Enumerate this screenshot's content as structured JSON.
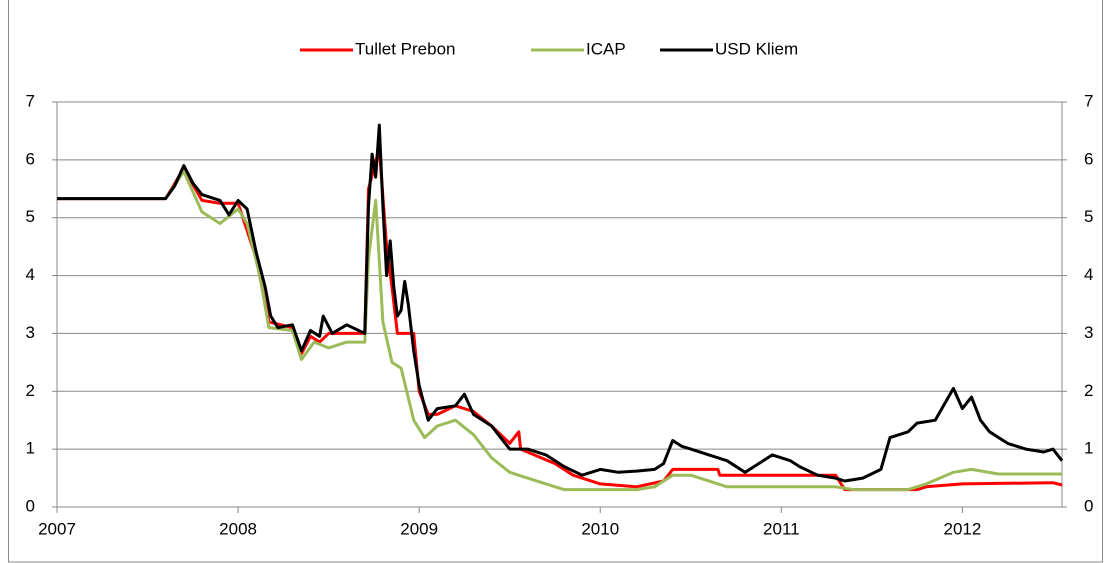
{
  "chart_data": {
    "type": "line",
    "xlim": [
      2007,
      2012.55
    ],
    "xticks": [
      2007,
      2008,
      2009,
      2010,
      2011,
      2012
    ],
    "ylim": [
      0,
      7
    ],
    "yticks": [
      0,
      1,
      2,
      3,
      4,
      5,
      6,
      7
    ],
    "y2lim": [
      0,
      7
    ],
    "y2ticks": [
      0,
      1,
      2,
      3,
      4,
      5,
      6,
      7
    ],
    "grid": true,
    "legend": "top",
    "series": [
      {
        "name": "Tullet Prebon",
        "color": "#ff0000",
        "x": [
          2007.0,
          2007.6,
          2007.7,
          2007.8,
          2007.9,
          2008.0,
          2008.1,
          2008.17,
          2008.3,
          2008.35,
          2008.4,
          2008.45,
          2008.5,
          2008.7,
          2008.72,
          2008.78,
          2008.82,
          2008.85,
          2008.88,
          2008.97,
          2009.0,
          2009.05,
          2009.1,
          2009.2,
          2009.3,
          2009.4,
          2009.5,
          2009.55,
          2009.56,
          2009.75,
          2009.85,
          2010.0,
          2010.2,
          2010.35,
          2010.4,
          2010.65,
          2010.66,
          2011.3,
          2011.35,
          2011.75,
          2011.8,
          2012.0,
          2012.5,
          2012.55
        ],
        "values": [
          5.33,
          5.33,
          5.85,
          5.3,
          5.25,
          5.25,
          4.3,
          3.2,
          3.1,
          2.65,
          2.95,
          2.85,
          3.0,
          3.0,
          5.5,
          6.2,
          4.5,
          3.8,
          3.0,
          3.0,
          2.0,
          1.6,
          1.6,
          1.75,
          1.65,
          1.4,
          1.1,
          1.3,
          1.0,
          0.75,
          0.55,
          0.4,
          0.35,
          0.45,
          0.65,
          0.65,
          0.55,
          0.55,
          0.3,
          0.3,
          0.35,
          0.4,
          0.42,
          0.38
        ]
      },
      {
        "name": "ICAP",
        "color": "#9bbb59",
        "x": [
          2007.0,
          2007.6,
          2007.7,
          2007.8,
          2007.9,
          2008.0,
          2008.05,
          2008.12,
          2008.17,
          2008.3,
          2008.35,
          2008.42,
          2008.5,
          2008.6,
          2008.7,
          2008.72,
          2008.76,
          2008.8,
          2008.85,
          2008.9,
          2008.97,
          2009.03,
          2009.1,
          2009.2,
          2009.3,
          2009.4,
          2009.5,
          2009.7,
          2009.8,
          2010.2,
          2010.3,
          2010.4,
          2010.5,
          2010.7,
          2011.0,
          2011.3,
          2011.4,
          2011.7,
          2011.8,
          2011.95,
          2012.05,
          2012.2,
          2012.55
        ],
        "values": [
          5.33,
          5.33,
          5.8,
          5.1,
          4.9,
          5.15,
          4.9,
          4.0,
          3.1,
          3.05,
          2.55,
          2.85,
          2.75,
          2.85,
          2.85,
          4.3,
          5.3,
          3.2,
          2.5,
          2.4,
          1.5,
          1.2,
          1.4,
          1.5,
          1.25,
          0.85,
          0.6,
          0.4,
          0.3,
          0.3,
          0.35,
          0.55,
          0.55,
          0.35,
          0.35,
          0.35,
          0.3,
          0.3,
          0.4,
          0.6,
          0.65,
          0.57,
          0.57
        ]
      },
      {
        "name": "USD Kliem",
        "color": "#000000",
        "x": [
          2007.0,
          2007.6,
          2007.65,
          2007.7,
          2007.75,
          2007.8,
          2007.9,
          2007.95,
          2008.0,
          2008.05,
          2008.1,
          2008.15,
          2008.18,
          2008.22,
          2008.3,
          2008.35,
          2008.4,
          2008.45,
          2008.47,
          2008.52,
          2008.6,
          2008.7,
          2008.72,
          2008.74,
          2008.76,
          2008.78,
          2008.8,
          2008.82,
          2008.84,
          2008.86,
          2008.88,
          2008.9,
          2008.92,
          2008.94,
          2008.97,
          2009.0,
          2009.05,
          2009.1,
          2009.2,
          2009.25,
          2009.3,
          2009.4,
          2009.45,
          2009.5,
          2009.6,
          2009.7,
          2009.8,
          2009.9,
          2010.0,
          2010.1,
          2010.2,
          2010.3,
          2010.35,
          2010.4,
          2010.45,
          2010.5,
          2010.6,
          2010.7,
          2010.8,
          2010.85,
          2010.95,
          2011.05,
          2011.1,
          2011.2,
          2011.3,
          2011.35,
          2011.45,
          2011.55,
          2011.6,
          2011.7,
          2011.75,
          2011.85,
          2011.95,
          2012.0,
          2012.05,
          2012.1,
          2012.15,
          2012.25,
          2012.35,
          2012.45,
          2012.5,
          2012.55
        ],
        "values": [
          5.33,
          5.33,
          5.55,
          5.9,
          5.6,
          5.4,
          5.3,
          5.05,
          5.3,
          5.15,
          4.4,
          3.8,
          3.3,
          3.1,
          3.15,
          2.7,
          3.05,
          2.95,
          3.3,
          3.0,
          3.15,
          3.0,
          5.2,
          6.1,
          5.7,
          6.6,
          5.2,
          4.0,
          4.6,
          3.8,
          3.3,
          3.4,
          3.9,
          3.5,
          2.7,
          2.1,
          1.5,
          1.7,
          1.75,
          1.95,
          1.6,
          1.4,
          1.2,
          1.0,
          1.0,
          0.9,
          0.7,
          0.55,
          0.65,
          0.6,
          0.62,
          0.65,
          0.75,
          1.15,
          1.05,
          1.0,
          0.9,
          0.8,
          0.6,
          0.7,
          0.9,
          0.8,
          0.7,
          0.55,
          0.5,
          0.45,
          0.5,
          0.65,
          1.2,
          1.3,
          1.45,
          1.5,
          2.05,
          1.7,
          1.9,
          1.5,
          1.3,
          1.1,
          1.0,
          0.95,
          1.0,
          0.8
        ]
      }
    ]
  }
}
